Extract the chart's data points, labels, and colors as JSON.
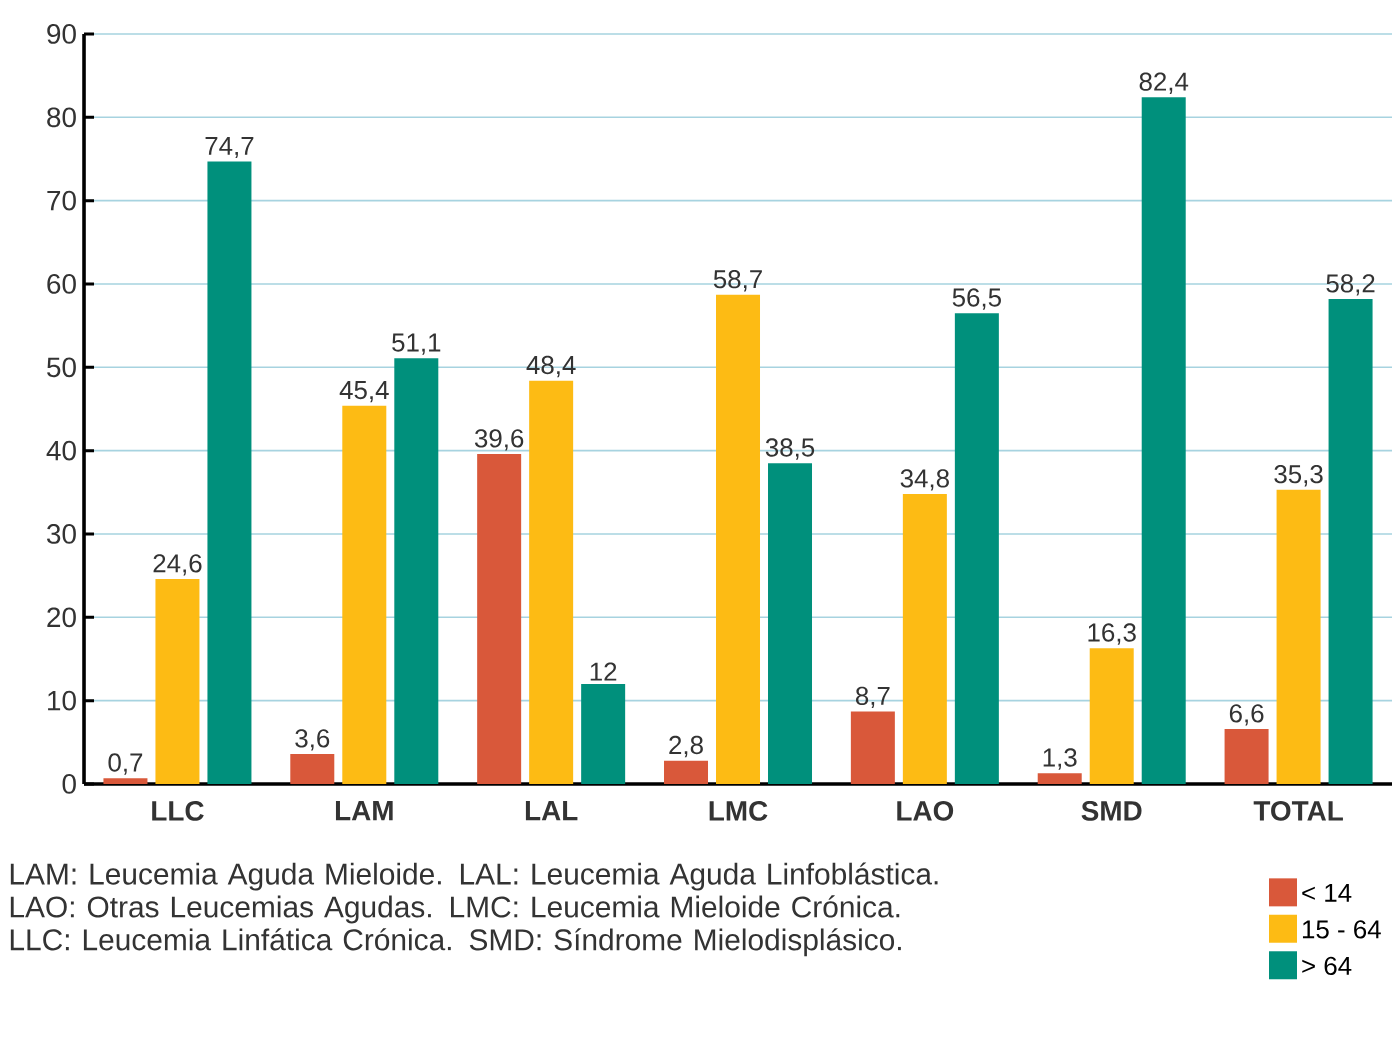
{
  "chart_data": {
    "type": "bar",
    "categories": [
      "LLC",
      "LAM",
      "LAL",
      "LMC",
      "LAO",
      "SMD",
      "TOTAL"
    ],
    "series": [
      {
        "name": "< 14",
        "color": "#d9583a",
        "values": [
          0.7,
          3.6,
          39.6,
          2.8,
          8.7,
          1.3,
          6.6
        ],
        "value_labels": [
          "0,7",
          "3,6",
          "39,6",
          "2,8",
          "8,7",
          "1,3",
          "6,6"
        ]
      },
      {
        "name": "15 - 64",
        "color": "#fdbb14",
        "values": [
          24.6,
          45.4,
          48.4,
          58.7,
          34.8,
          16.3,
          35.3
        ],
        "value_labels": [
          "24,6",
          "45,4",
          "48,4",
          "58,7",
          "34,8",
          "16,3",
          "35,3"
        ]
      },
      {
        "name": "> 64",
        "color": "#00907c",
        "values": [
          74.7,
          51.1,
          12,
          38.5,
          56.5,
          82.4,
          58.2
        ],
        "value_labels": [
          "74,7",
          "51,1",
          "12",
          "38,5",
          "56,5",
          "82,4",
          "58,2"
        ]
      }
    ],
    "ylim": [
      0,
      90
    ],
    "yticks": [
      0,
      10,
      20,
      30,
      40,
      50,
      60,
      70,
      80,
      90
    ],
    "grid": "y",
    "legend": "bottom right",
    "annotations": [
      "LAM: Leucemia Aguda Mieloide. LAL: Leucemia Aguda Linfoblástica. LAO: Otras Leucemias Agudas. LMC: Leucemia Mieloide Crónica. LLC: Leucemia Linfática Crónica. SMD: Síndrome Mielodisplásico."
    ]
  }
}
